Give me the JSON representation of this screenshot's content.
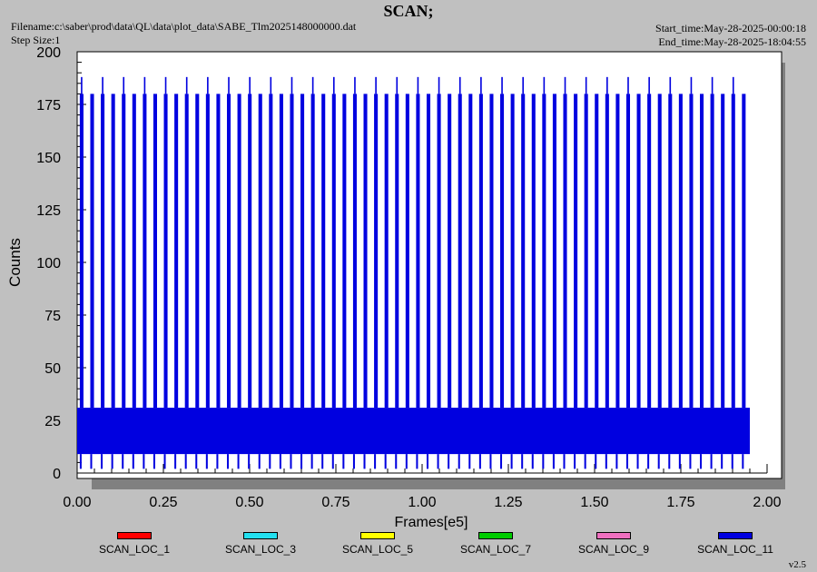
{
  "header": {
    "title": "SCAN;",
    "filename": "Filename:c:\\saber\\prod\\data\\QL\\data\\plot_data\\SABE_Tlm2025148000000.dat",
    "step_size": "Step Size:1",
    "start_time": "Start_time:May-28-2025-00:00:18",
    "end_time": "End_time:May-28-2025-18:04:55"
  },
  "version": "v2.5",
  "chart_data": {
    "type": "line",
    "xlabel": "Frames[e5]",
    "ylabel": "Counts",
    "xlim": [
      0,
      2.0
    ],
    "ylim": [
      0,
      200
    ],
    "x_ticks": [
      "0.00",
      "0.25",
      "0.50",
      "0.75",
      "1.00",
      "1.25",
      "1.50",
      "1.75",
      "2.00"
    ],
    "y_ticks": [
      "0",
      "25",
      "50",
      "75",
      "100",
      "125",
      "150",
      "175",
      "200"
    ],
    "grid": false,
    "legend_position": "bottom",
    "colors": {
      "background": "#c0c0c0",
      "plot_area": "#ffffff",
      "shadow": "#808080"
    },
    "series": [
      {
        "name": "SCAN_LOC_1",
        "color": "#ff0000"
      },
      {
        "name": "SCAN_LOC_3",
        "color": "#22e0f0"
      },
      {
        "name": "SCAN_LOC_5",
        "color": "#ffff00"
      },
      {
        "name": "SCAN_LOC_7",
        "color": "#00cc00"
      },
      {
        "name": "SCAN_LOC_9",
        "color": "#f070c0"
      },
      {
        "name": "SCAN_LOC_11",
        "color": "#0000e0"
      }
    ],
    "data_extent_x": [
      0.0,
      1.95
    ],
    "scan_pattern": {
      "scan_count": 64,
      "scan_top": 180,
      "scan_peak": 188,
      "band_high": 31,
      "band_low": 9,
      "scan_floor": 2
    }
  }
}
